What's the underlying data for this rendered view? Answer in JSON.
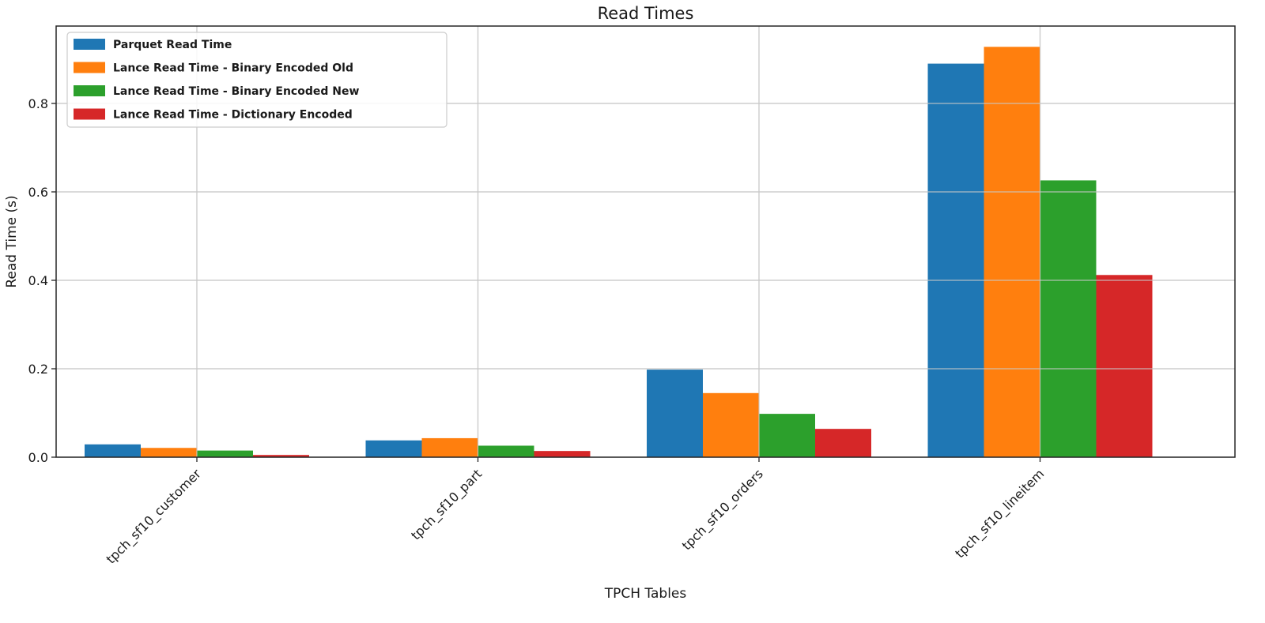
{
  "chart_data": {
    "type": "bar",
    "title": "Read Times",
    "xlabel": "TPCH Tables",
    "ylabel": "Read Time (s)",
    "categories": [
      "tpch_sf10_customer",
      "tpch_sf10_part",
      "tpch_sf10_orders",
      "tpch_sf10_lineitem"
    ],
    "series": [
      {
        "name": "Parquet Read Time",
        "color": "#1f77b4",
        "values": [
          0.029,
          0.038,
          0.198,
          0.89
        ]
      },
      {
        "name": "Lance Read Time - Binary Encoded Old",
        "color": "#ff7f0e",
        "values": [
          0.021,
          0.043,
          0.145,
          0.928
        ]
      },
      {
        "name": "Lance Read Time - Binary Encoded New",
        "color": "#2ca02c",
        "values": [
          0.015,
          0.026,
          0.098,
          0.626
        ]
      },
      {
        "name": "Lance Read Time - Dictionary Encoded",
        "color": "#d62728",
        "values": [
          0.005,
          0.014,
          0.064,
          0.412
        ]
      }
    ],
    "ylim": [
      0,
      0.975
    ],
    "yticks": [
      0.0,
      0.2,
      0.4,
      0.6,
      0.8
    ],
    "ytick_labels": [
      "0.0",
      "0.2",
      "0.4",
      "0.6",
      "0.8"
    ],
    "grid": true,
    "legend_position": "top-left"
  }
}
